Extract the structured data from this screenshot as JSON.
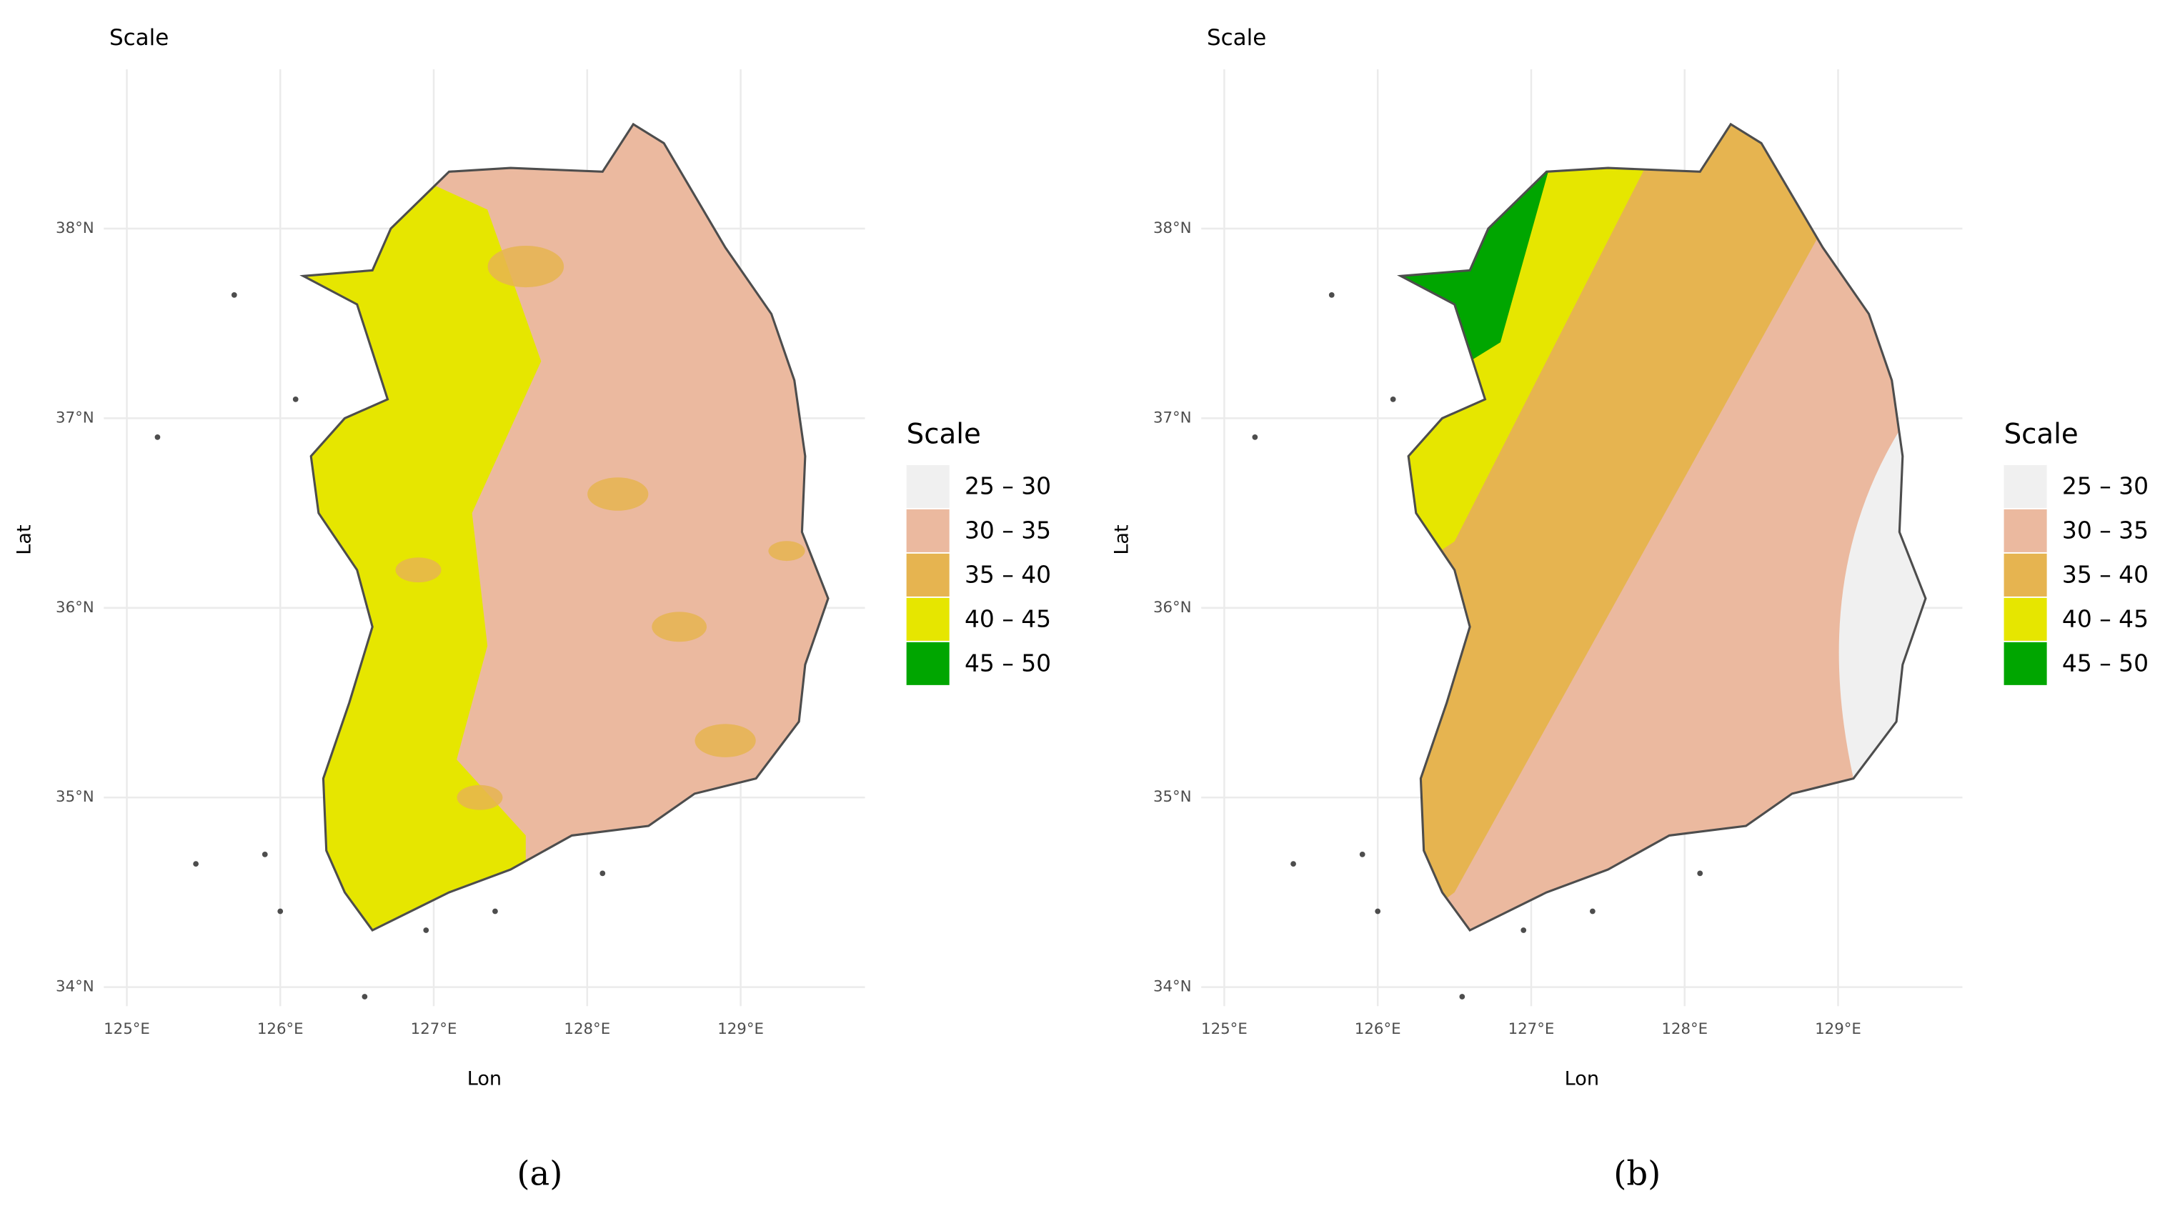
{
  "panels": [
    {
      "title": "Scale",
      "xlabel": "Lon",
      "ylabel": "Lat",
      "caption": "(a)",
      "xlim": [
        124.85,
        129.81
      ],
      "ylim": [
        33.9,
        38.84
      ],
      "xticks": [
        {
          "value": 125,
          "label": "125°E"
        },
        {
          "value": 126,
          "label": "126°E"
        },
        {
          "value": 127,
          "label": "127°E"
        },
        {
          "value": 128,
          "label": "128°E"
        },
        {
          "value": 129,
          "label": "129°E"
        }
      ],
      "yticks": [
        {
          "value": 34,
          "label": "34°N"
        },
        {
          "value": 35,
          "label": "35°N"
        },
        {
          "value": 36,
          "label": "36°N"
        },
        {
          "value": 37,
          "label": "37°N"
        },
        {
          "value": 38,
          "label": "38°N"
        }
      ]
    },
    {
      "title": "Scale",
      "xlabel": "Lon",
      "ylabel": "Lat",
      "caption": "(b)",
      "xlim": [
        124.85,
        129.81
      ],
      "ylim": [
        33.9,
        38.84
      ],
      "xticks": [
        {
          "value": 125,
          "label": "125°E"
        },
        {
          "value": 126,
          "label": "126°E"
        },
        {
          "value": 127,
          "label": "127°E"
        },
        {
          "value": 128,
          "label": "128°E"
        },
        {
          "value": 129,
          "label": "129°E"
        }
      ],
      "yticks": [
        {
          "value": 34,
          "label": "34°N"
        },
        {
          "value": 35,
          "label": "35°N"
        },
        {
          "value": 36,
          "label": "36°N"
        },
        {
          "value": 37,
          "label": "37°N"
        },
        {
          "value": 38,
          "label": "38°N"
        }
      ]
    }
  ],
  "legend": {
    "title": "Scale",
    "items": [
      {
        "label": "25 – 30",
        "color": "#f0f0f0"
      },
      {
        "label": "30 – 35",
        "color": "#ebb99f"
      },
      {
        "label": "35 – 40",
        "color": "#e6b450"
      },
      {
        "label": "40 – 45",
        "color": "#e6e600"
      },
      {
        "label": "45 – 50",
        "color": "#00a600"
      }
    ]
  }
}
